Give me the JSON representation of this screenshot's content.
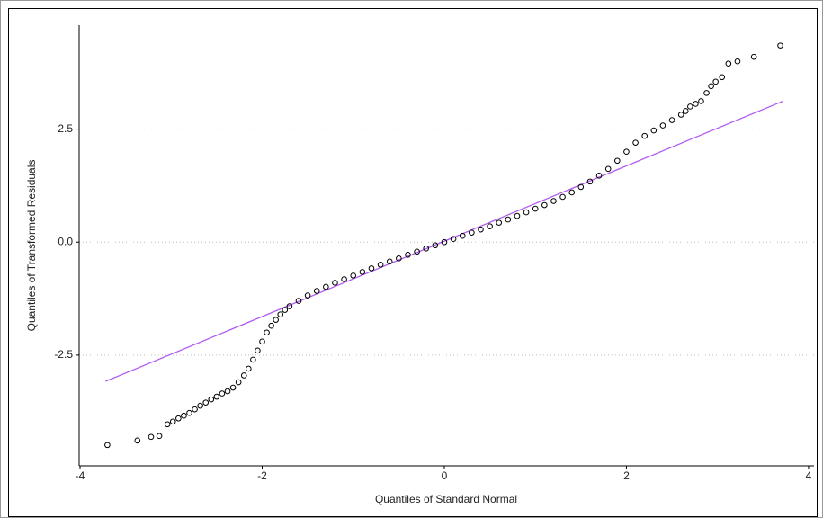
{
  "chart_data": {
    "type": "scatter",
    "xlabel": "Quantiles of Standard Normal",
    "ylabel": "Quantiles of Transformed Residuals",
    "x": [
      -3.7,
      -3.37,
      -3.22,
      -3.13,
      -3.04,
      -2.98,
      -2.92,
      -2.86,
      -2.8,
      -2.74,
      -2.68,
      -2.62,
      -2.56,
      -2.5,
      -2.44,
      -2.38,
      -2.32,
      -2.26,
      -2.2,
      -2.15,
      -2.1,
      -2.05,
      -2.0,
      -1.95,
      -1.9,
      -1.85,
      -1.8,
      -1.75,
      -1.7,
      -1.6,
      -1.5,
      -1.4,
      -1.3,
      -1.2,
      -1.1,
      -1.0,
      -0.9,
      -0.8,
      -0.7,
      -0.6,
      -0.5,
      -0.4,
      -0.3,
      -0.2,
      -0.1,
      0,
      0.1,
      0.2,
      0.3,
      0.4,
      0.5,
      0.6,
      0.7,
      0.8,
      0.9,
      1.0,
      1.1,
      1.2,
      1.3,
      1.4,
      1.5,
      1.6,
      1.7,
      1.8,
      1.9,
      2.0,
      2.1,
      2.2,
      2.3,
      2.4,
      2.5,
      2.6,
      2.65,
      2.7,
      2.76,
      2.82,
      2.88,
      2.93,
      2.98,
      3.05,
      3.12,
      3.22,
      3.4,
      3.69
    ],
    "values": [
      -4.49,
      -4.39,
      -4.31,
      -4.29,
      -4.03,
      -3.97,
      -3.9,
      -3.84,
      -3.78,
      -3.7,
      -3.62,
      -3.55,
      -3.48,
      -3.42,
      -3.35,
      -3.3,
      -3.22,
      -3.1,
      -2.95,
      -2.8,
      -2.6,
      -2.4,
      -2.2,
      -2.0,
      -1.85,
      -1.72,
      -1.6,
      -1.5,
      -1.42,
      -1.3,
      -1.18,
      -1.08,
      -0.99,
      -0.9,
      -0.82,
      -0.74,
      -0.66,
      -0.58,
      -0.5,
      -0.43,
      -0.36,
      -0.28,
      -0.21,
      -0.14,
      -0.07,
      0,
      0.07,
      0.14,
      0.21,
      0.28,
      0.35,
      0.43,
      0.5,
      0.58,
      0.66,
      0.74,
      0.82,
      0.91,
      1.0,
      1.1,
      1.22,
      1.34,
      1.47,
      1.62,
      1.8,
      2.0,
      2.2,
      2.35,
      2.47,
      2.58,
      2.7,
      2.82,
      2.9,
      3.0,
      3.06,
      3.12,
      3.3,
      3.45,
      3.55,
      3.65,
      3.95,
      4.0,
      4.1,
      4.35
    ],
    "point_color": "#000000",
    "reference_line": {
      "x": [
        -3.72,
        3.72
      ],
      "values": [
        -3.08,
        3.12
      ],
      "color": "#b25cf2"
    },
    "xlim": [
      -4.01,
      4.06
    ],
    "ylim": [
      -4.95,
      4.8
    ],
    "xticks": [
      -4,
      -2,
      0,
      2,
      4
    ],
    "yticks": [
      2.5,
      {
        "value": 0,
        "label": "0.0"
      },
      -2.5
    ],
    "grid": "y"
  }
}
